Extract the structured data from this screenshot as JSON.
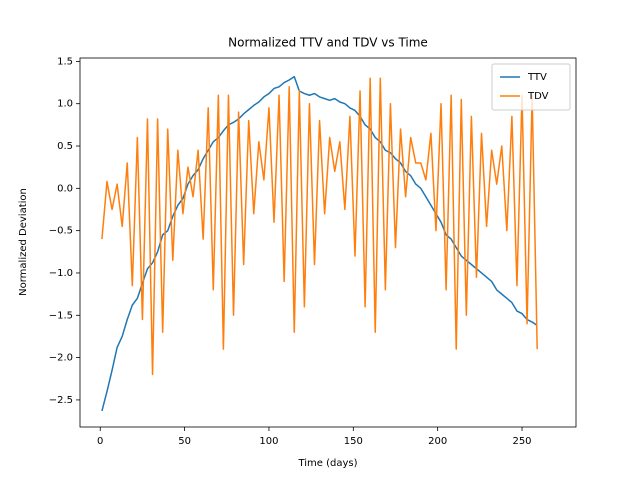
{
  "chart_data": {
    "type": "line",
    "title": "Normalized TTV and TDV vs Time",
    "x_label": "Time (days)",
    "y_label": "Normalized Deviation",
    "x": [
      1,
      4,
      7,
      10,
      13,
      16,
      19,
      22,
      25,
      28,
      31,
      34,
      37,
      40,
      43,
      46,
      49,
      52,
      55,
      58,
      61,
      64,
      67,
      70,
      73,
      76,
      79,
      82,
      85,
      88,
      91,
      94,
      97,
      100,
      103,
      106,
      109,
      112,
      115,
      118,
      121,
      124,
      127,
      130,
      133,
      136,
      139,
      142,
      145,
      148,
      151,
      154,
      157,
      160,
      163,
      166,
      169,
      172,
      175,
      178,
      181,
      184,
      187,
      190,
      193,
      196,
      199,
      202,
      205,
      208,
      211,
      214,
      217,
      220,
      223,
      226,
      229,
      232,
      235,
      238,
      241,
      244,
      247,
      250,
      253,
      256,
      259
    ],
    "series": [
      {
        "name": "TTV",
        "color": "#1f77b4",
        "values": [
          -2.63,
          -2.4,
          -2.15,
          -1.88,
          -1.75,
          -1.55,
          -1.38,
          -1.3,
          -1.12,
          -0.95,
          -0.88,
          -0.75,
          -0.55,
          -0.5,
          -0.33,
          -0.2,
          -0.12,
          0.05,
          0.15,
          0.22,
          0.35,
          0.45,
          0.55,
          0.6,
          0.68,
          0.75,
          0.78,
          0.82,
          0.88,
          0.93,
          0.98,
          1.02,
          1.08,
          1.12,
          1.18,
          1.2,
          1.25,
          1.28,
          1.32,
          1.15,
          1.12,
          1.1,
          1.12,
          1.08,
          1.06,
          1.04,
          1.06,
          1.02,
          1.0,
          0.95,
          0.92,
          0.85,
          0.75,
          0.7,
          0.6,
          0.55,
          0.45,
          0.42,
          0.35,
          0.3,
          0.2,
          0.15,
          0.05,
          0.0,
          -0.1,
          -0.2,
          -0.3,
          -0.4,
          -0.55,
          -0.6,
          -0.7,
          -0.8,
          -0.85,
          -0.9,
          -0.95,
          -1.0,
          -1.05,
          -1.1,
          -1.2,
          -1.25,
          -1.3,
          -1.35,
          -1.45,
          -1.48,
          -1.55,
          -1.58,
          -1.62
        ]
      },
      {
        "name": "TDV",
        "color": "#ff7f0e",
        "values": [
          -0.6,
          0.08,
          -0.25,
          0.05,
          -0.45,
          0.3,
          -1.15,
          0.6,
          -1.55,
          0.82,
          -2.2,
          0.82,
          -1.7,
          0.7,
          -0.85,
          0.45,
          -0.3,
          0.25,
          -0.1,
          0.45,
          -0.6,
          0.95,
          -1.2,
          1.1,
          -1.9,
          1.1,
          -1.5,
          0.9,
          -0.9,
          0.8,
          -0.3,
          0.55,
          0.1,
          0.95,
          -0.4,
          1.1,
          -1.1,
          1.2,
          -1.7,
          1.15,
          -1.4,
          1.0,
          -0.9,
          0.8,
          -0.3,
          0.6,
          0.2,
          0.55,
          -0.25,
          0.85,
          -0.8,
          1.15,
          -1.4,
          1.3,
          -1.7,
          1.3,
          -1.2,
          1.0,
          -0.7,
          0.7,
          -0.1,
          0.6,
          0.3,
          0.3,
          0.1,
          0.65,
          -0.5,
          1.0,
          -1.2,
          1.1,
          -1.9,
          1.05,
          -1.5,
          0.85,
          -1.05,
          0.65,
          -0.45,
          0.45,
          0.05,
          0.5,
          -0.5,
          0.85,
          -1.15,
          1.1,
          -1.6,
          1.1,
          -1.9
        ]
      }
    ],
    "xlim": [
      -12,
      282
    ],
    "ylim": [
      -2.82,
      1.54
    ],
    "xticks": [
      0,
      50,
      100,
      150,
      200,
      250
    ],
    "yticks": [
      {
        "value": -2.5,
        "label": "−2.5"
      },
      {
        "value": -2.0,
        "label": "−2.0"
      },
      {
        "value": -1.5,
        "label": "−1.5"
      },
      {
        "value": -1.0,
        "label": "−1.0"
      },
      {
        "value": -0.5,
        "label": "−0.5"
      },
      {
        "value": 0,
        "label": "0.0"
      },
      0.5,
      {
        "value": 1,
        "label": "1.0"
      },
      1.5
    ],
    "legend": "upper right",
    "grid": false
  }
}
